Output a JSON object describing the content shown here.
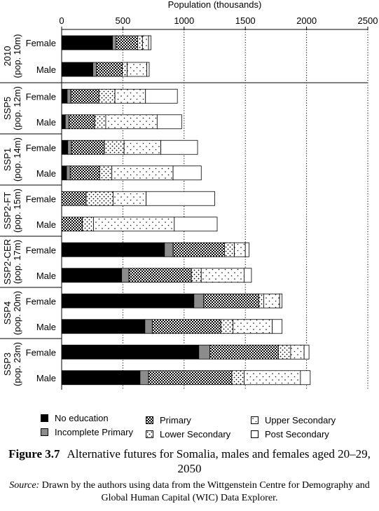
{
  "chart_data": {
    "type": "bar",
    "orientation": "horizontal",
    "stacked": true,
    "xlabel": "Population (thousands)",
    "xlim": [
      0,
      2500
    ],
    "xticks": [
      0,
      500,
      1000,
      1500,
      2000,
      2500
    ],
    "grid": "vertical dotted",
    "legend_position": "bottom",
    "categories": [
      "No education",
      "Incomplete Primary",
      "Primary",
      "Lower Secondary",
      "Upper Secondary",
      "Post Secondary"
    ],
    "groups": [
      {
        "scenario": "2010",
        "pop": "(pop. 10m)",
        "rows": [
          {
            "sex": "Female",
            "values": [
              415,
              30,
              175,
              40,
              50,
              20
            ]
          },
          {
            "sex": "Male",
            "values": [
              255,
              30,
              210,
              40,
              160,
              20
            ]
          }
        ]
      },
      {
        "scenario": "SSP5",
        "pop": "(pop. 12m)",
        "rows": [
          {
            "sex": "Female",
            "values": [
              45,
              30,
              230,
              130,
              250,
              260
            ]
          },
          {
            "sex": "Male",
            "values": [
              30,
              30,
              210,
              90,
              420,
              200
            ]
          }
        ]
      },
      {
        "scenario": "SSP1",
        "pop": "(pop. 14m)",
        "rows": [
          {
            "sex": "Female",
            "values": [
              50,
              30,
              270,
              160,
              300,
              300
            ]
          },
          {
            "sex": "Male",
            "values": [
              40,
              30,
              240,
              100,
              500,
              230
            ]
          }
        ]
      },
      {
        "scenario": "SSP2-FT",
        "pop": "(pop. 15m)",
        "rows": [
          {
            "sex": "Female",
            "values": [
              0,
              0,
              200,
              220,
              270,
              560
            ]
          },
          {
            "sex": "Male",
            "values": [
              0,
              0,
              170,
              90,
              660,
              350
            ]
          }
        ]
      },
      {
        "scenario": "SSP2-CER",
        "pop": "(pop. 17m)",
        "rows": [
          {
            "sex": "Female",
            "values": [
              840,
              70,
              420,
              80,
              90,
              30
            ]
          },
          {
            "sex": "Male",
            "values": [
              490,
              60,
              510,
              80,
              350,
              60
            ]
          }
        ]
      },
      {
        "scenario": "SSP4",
        "pop": "(pop. 20m)",
        "rows": [
          {
            "sex": "Female",
            "values": [
              1080,
              80,
              450,
              40,
              130,
              20
            ]
          },
          {
            "sex": "Male",
            "values": [
              680,
              60,
              560,
              100,
              320,
              80
            ]
          }
        ]
      },
      {
        "scenario": "SSP3",
        "pop": "(pop. 23m)",
        "rows": [
          {
            "sex": "Female",
            "values": [
              1120,
              90,
              560,
              100,
              110,
              40
            ]
          },
          {
            "sex": "Male",
            "values": [
              640,
              70,
              680,
              100,
              460,
              80
            ]
          }
        ]
      }
    ]
  },
  "legend": {
    "no_education": "No education",
    "incomplete_primary": "Incomplete Primary",
    "primary": "Primary",
    "lower_secondary": "Lower Secondary",
    "upper_secondary": "Upper Secondary",
    "post_secondary": "Post Secondary"
  },
  "caption": {
    "figure_label": "Figure 3.7",
    "title": "Alternative futures for Somalia, males and females aged 20–29, 2050",
    "source_label": "Source:",
    "source_text": "Drawn by the authors using data from the Wittgenstein Centre for Demography and Global Human Capital (WIC) Data Explorer."
  },
  "colors": {
    "no_education": "#000000",
    "incomplete_primary": "#8c8c8c",
    "background": "#ffffff"
  }
}
